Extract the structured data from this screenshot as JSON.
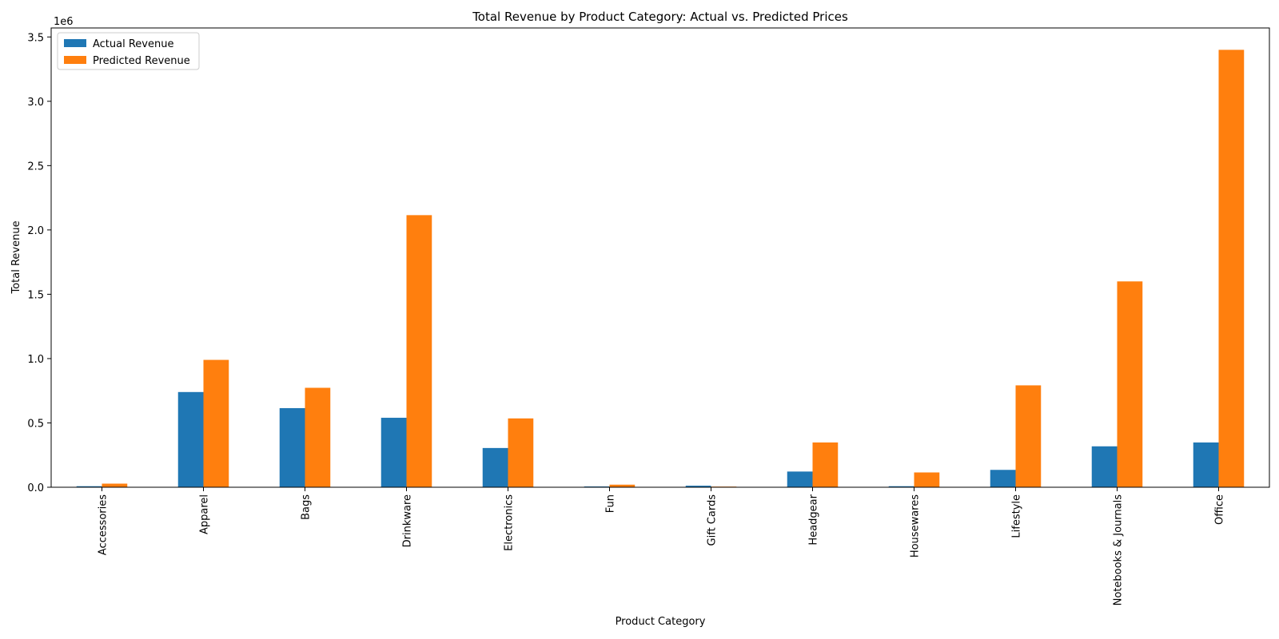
{
  "chart_data": {
    "type": "bar",
    "title": "Total Revenue by Product Category: Actual vs. Predicted Prices",
    "xlabel": "Product Category",
    "ylabel": "Total Revenue",
    "y_offset_label": "1e6",
    "y_scale": 1000000,
    "ylim": [
      0,
      3570000
    ],
    "yticks": [
      0,
      500000,
      1000000,
      1500000,
      2000000,
      2500000,
      3000000,
      3500000
    ],
    "ytick_labels": [
      "0.0",
      "0.5",
      "1.0",
      "1.5",
      "2.0",
      "2.5",
      "3.0",
      "3.5"
    ],
    "legend_position": "top-left",
    "grid": false,
    "categories": [
      "Accessories",
      "Apparel",
      "Bags",
      "Drinkware",
      "Electronics",
      "Fun",
      "Gift Cards",
      "Headgear",
      "Housewares",
      "Lifestyle",
      "Notebooks & Journals",
      "Office"
    ],
    "series": [
      {
        "name": "Actual Revenue",
        "color": "#1f77b4",
        "values": [
          8000,
          740000,
          615000,
          540000,
          305000,
          6000,
          12000,
          122000,
          8000,
          135000,
          318000,
          348000
        ]
      },
      {
        "name": "Predicted Revenue",
        "color": "#ff7f0e",
        "values": [
          28000,
          990000,
          773000,
          2115000,
          535000,
          20000,
          5000,
          348000,
          115000,
          792000,
          1600000,
          3400000
        ]
      }
    ]
  }
}
